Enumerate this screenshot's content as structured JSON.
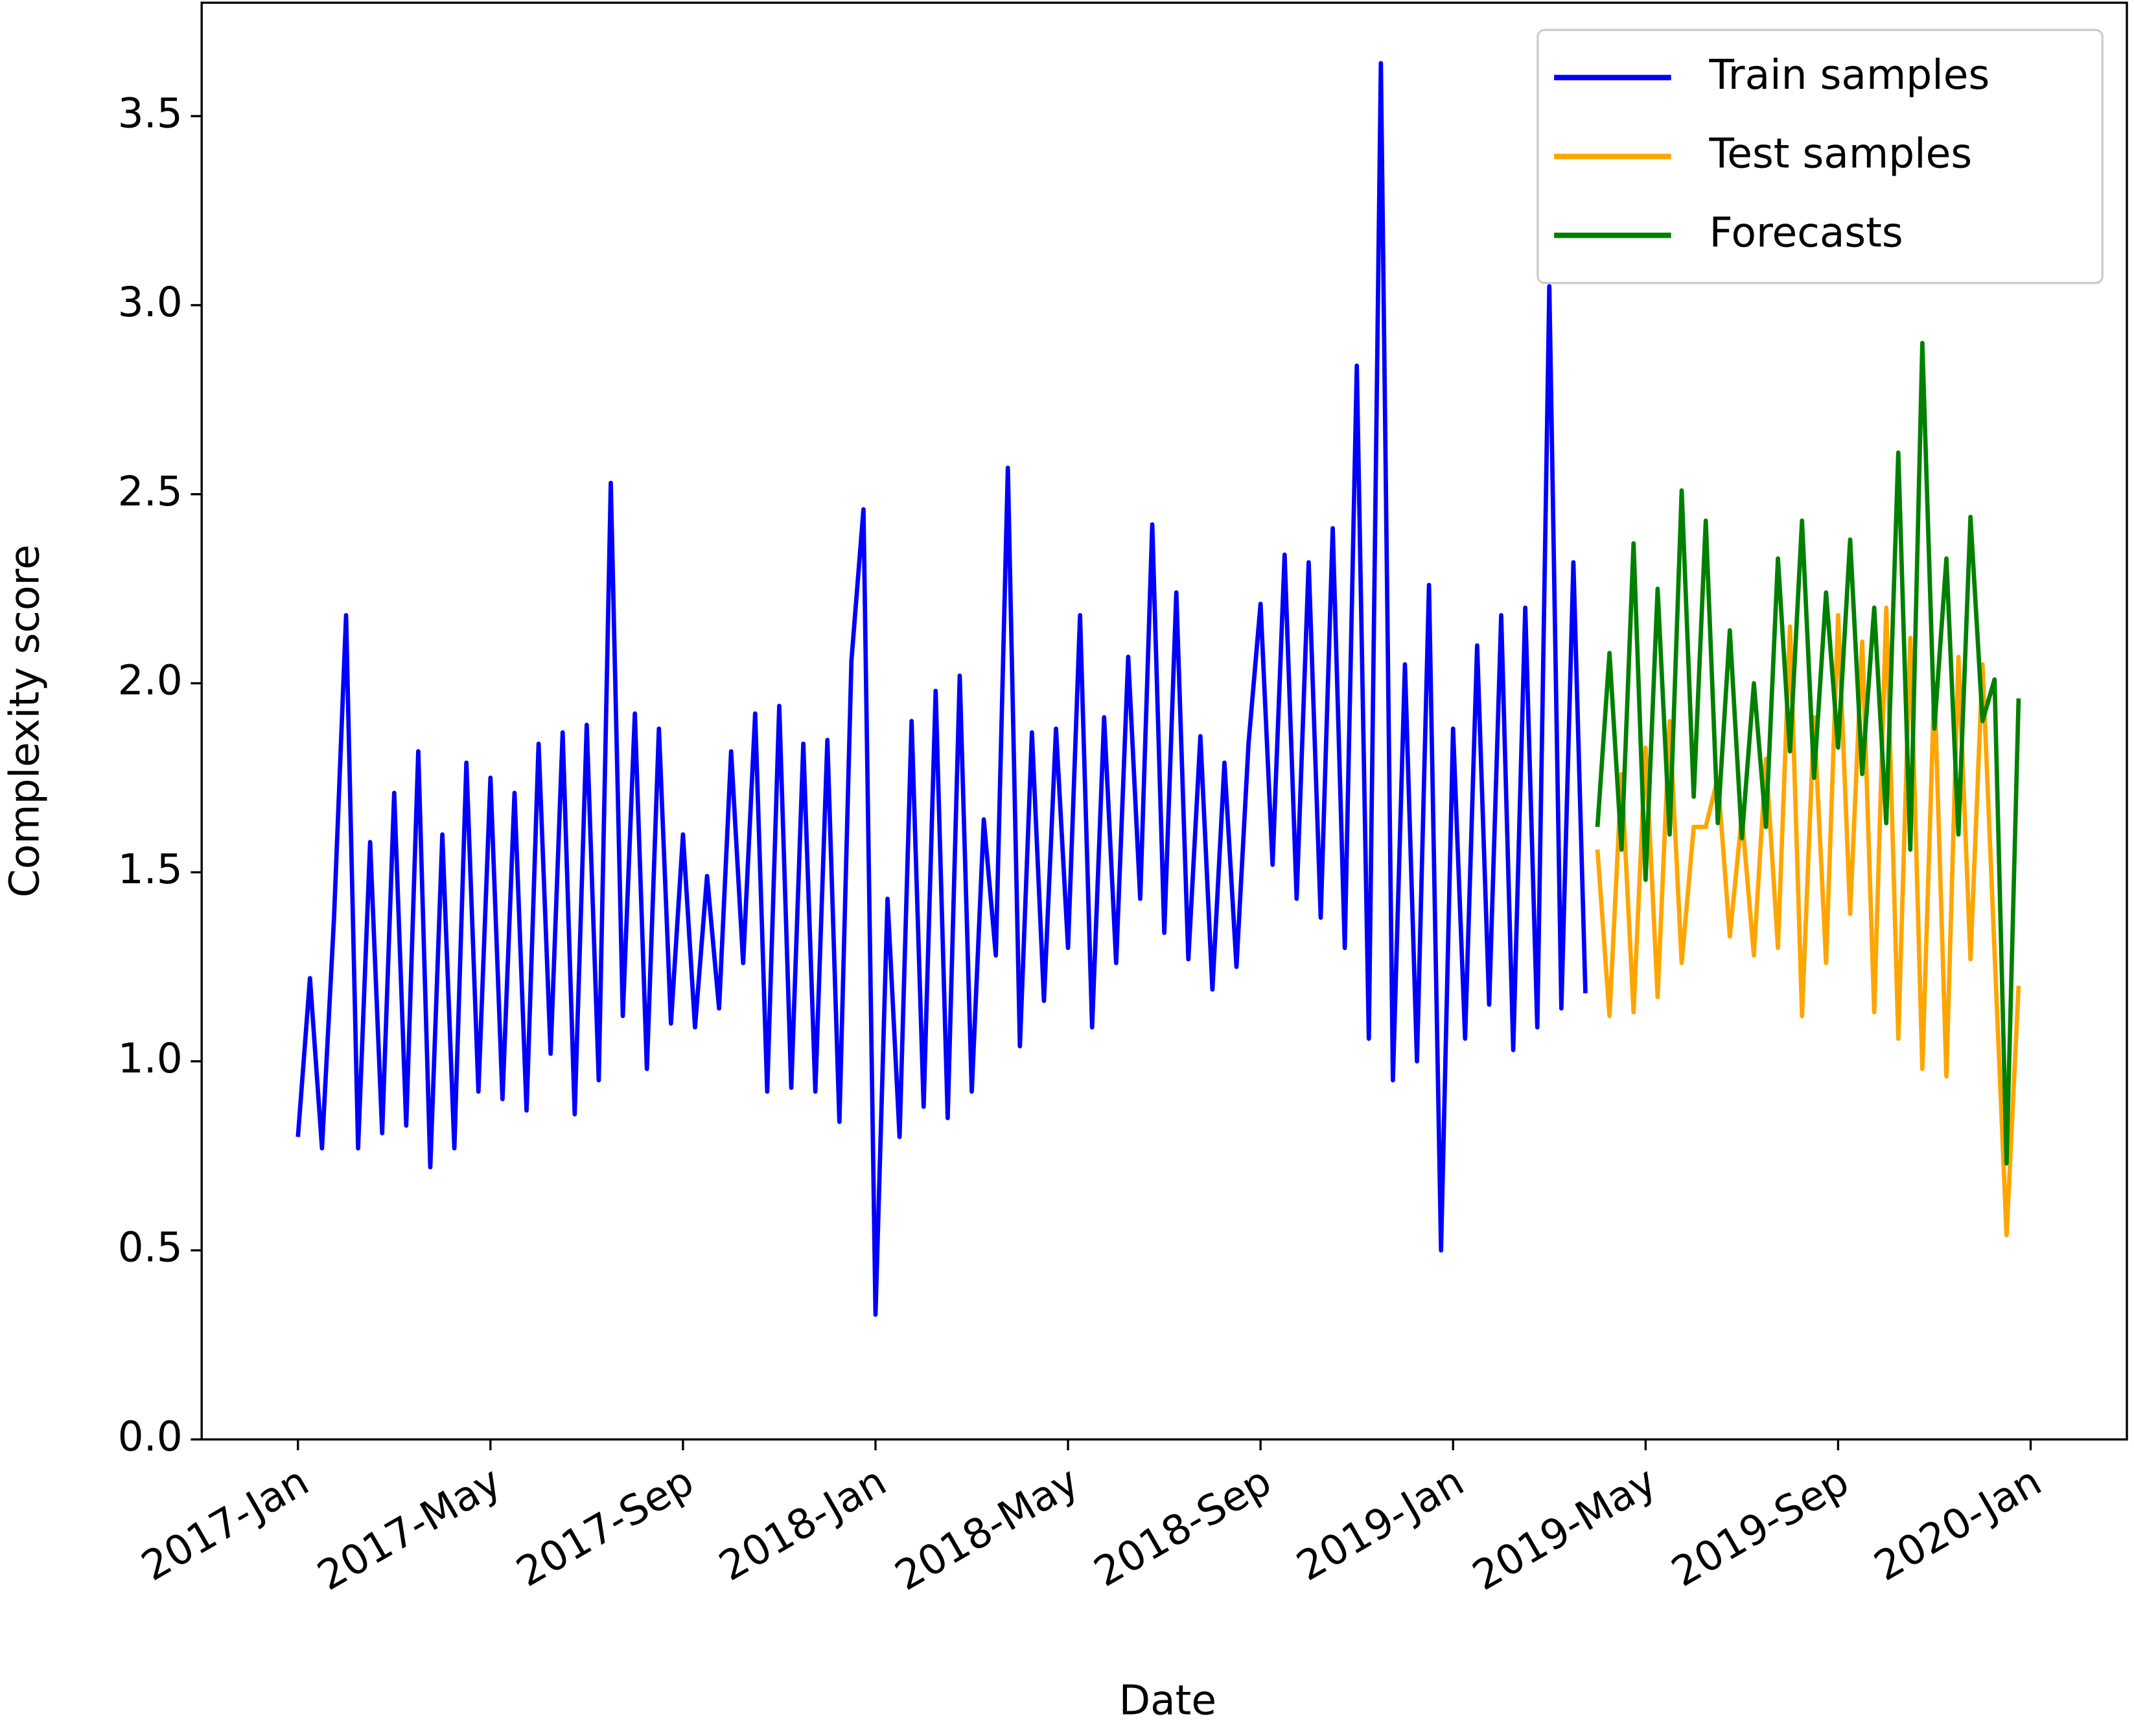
{
  "chart_data": {
    "type": "line",
    "xlabel": "Date",
    "ylabel": "Complexity score",
    "xlim": [
      "2016-11",
      "2020-03"
    ],
    "xticks": [
      {
        "value": "2017-01",
        "label": "2017-Jan"
      },
      {
        "value": "2017-05",
        "label": "2017-May"
      },
      {
        "value": "2017-09",
        "label": "2017-Sep"
      },
      {
        "value": "2018-01",
        "label": "2018-Jan"
      },
      {
        "value": "2018-05",
        "label": "2018-May"
      },
      {
        "value": "2018-09",
        "label": "2018-Sep"
      },
      {
        "value": "2019-01",
        "label": "2019-Jan"
      },
      {
        "value": "2019-05",
        "label": "2019-May"
      },
      {
        "value": "2019-09",
        "label": "2019-Sep"
      },
      {
        "value": "2020-01",
        "label": "2020-Jan"
      }
    ],
    "ylim": [
      0,
      3.8
    ],
    "yticks": [
      {
        "value": 0,
        "label": "0.0"
      },
      0.5,
      {
        "value": 1,
        "label": "1.0"
      },
      1.5,
      {
        "value": 2,
        "label": "2.0"
      },
      2.5,
      {
        "value": 3,
        "label": "3.0"
      },
      3.5
    ],
    "legend": "upper right",
    "series": [
      {
        "name": "Train samples",
        "color": "#0000ff",
        "x": [
          "2017-01",
          "2017-01",
          "2017-01",
          "2017-01",
          "2017-02",
          "2017-02",
          "2017-02",
          "2017-02",
          "2017-03",
          "2017-03",
          "2017-03",
          "2017-03",
          "2017-04",
          "2017-04",
          "2017-04",
          "2017-04",
          "2017-05",
          "2017-05",
          "2017-05",
          "2017-05",
          "2017-06",
          "2017-06",
          "2017-06",
          "2017-06",
          "2017-07",
          "2017-07",
          "2017-07",
          "2017-07",
          "2017-08",
          "2017-08",
          "2017-08",
          "2017-08",
          "2017-09",
          "2017-09",
          "2017-09",
          "2017-09",
          "2017-10",
          "2017-10",
          "2017-10",
          "2017-10",
          "2017-11",
          "2017-11",
          "2017-11",
          "2017-11",
          "2017-12",
          "2017-12",
          "2017-12",
          "2017-12",
          "2018-01",
          "2018-01",
          "2018-01",
          "2018-01",
          "2018-02",
          "2018-02",
          "2018-02",
          "2018-02",
          "2018-03",
          "2018-03",
          "2018-03",
          "2018-03",
          "2018-04",
          "2018-04",
          "2018-04",
          "2018-04",
          "2018-05",
          "2018-05",
          "2018-05",
          "2018-05",
          "2018-06",
          "2018-06",
          "2018-06",
          "2018-06",
          "2018-07",
          "2018-07",
          "2018-07",
          "2018-07",
          "2018-08",
          "2018-08",
          "2018-08",
          "2018-08",
          "2018-09",
          "2018-09",
          "2018-09",
          "2018-09",
          "2018-10",
          "2018-10",
          "2018-10",
          "2018-10",
          "2018-11",
          "2018-11",
          "2018-11",
          "2018-11",
          "2018-12",
          "2018-12",
          "2018-12",
          "2018-12",
          "2019-01",
          "2019-01",
          "2019-01",
          "2019-01",
          "2019-02",
          "2019-02",
          "2019-02",
          "2019-02",
          "2019-03",
          "2019-03",
          "2019-03",
          "2019-03"
        ],
        "values": [
          0.8,
          1.22,
          0.77,
          1.38,
          2.18,
          0.77,
          1.58,
          0.81,
          1.71,
          0.83,
          1.82,
          0.72,
          1.6,
          0.77,
          1.79,
          0.92,
          1.75,
          0.9,
          1.71,
          0.87,
          1.84,
          1.02,
          1.87,
          0.86,
          1.89,
          0.95,
          2.53,
          1.12,
          1.92,
          0.98,
          1.88,
          1.1,
          1.6,
          1.09,
          1.49,
          1.14,
          1.82,
          1.26,
          1.92,
          0.92,
          1.94,
          0.93,
          1.84,
          0.92,
          1.85,
          0.84,
          2.06,
          2.46,
          0.33,
          1.43,
          0.8,
          1.9,
          0.88,
          1.98,
          0.85,
          2.02,
          0.92,
          1.64,
          1.28,
          2.57,
          1.04,
          1.87,
          1.16,
          1.88,
          1.3,
          2.18,
          1.09,
          1.91,
          1.26,
          2.07,
          1.43,
          2.42,
          1.34,
          2.24,
          1.27,
          1.86,
          1.19,
          1.79,
          1.25,
          1.84,
          2.21,
          1.52,
          2.34,
          1.43,
          2.32,
          1.38,
          2.41,
          1.3,
          2.84,
          1.06,
          3.64,
          0.95,
          2.05,
          1.0,
          2.26,
          0.5,
          1.88,
          1.06,
          2.1,
          1.15,
          2.18,
          1.03,
          2.2,
          1.09,
          3.05,
          1.14,
          2.32,
          1.18
        ]
      },
      {
        "name": "Test samples",
        "color": "#ffa500",
        "x": [
          "2019-04",
          "2019-04",
          "2019-04",
          "2019-04",
          "2019-05",
          "2019-05",
          "2019-05",
          "2019-05",
          "2019-06",
          "2019-06",
          "2019-06",
          "2019-06",
          "2019-07",
          "2019-07",
          "2019-07",
          "2019-07",
          "2019-08",
          "2019-08",
          "2019-08",
          "2019-08",
          "2019-09",
          "2019-09",
          "2019-09",
          "2019-09",
          "2019-10",
          "2019-10",
          "2019-10",
          "2019-10",
          "2019-11",
          "2019-11",
          "2019-11",
          "2019-11",
          "2019-12",
          "2019-12",
          "2019-12",
          "2019-12"
        ],
        "values": [
          1.56,
          1.12,
          1.76,
          1.13,
          1.83,
          1.17,
          1.9,
          1.26,
          1.62,
          1.62,
          1.75,
          1.33,
          1.65,
          1.28,
          1.8,
          1.3,
          2.15,
          1.12,
          1.91,
          1.26,
          2.18,
          1.39,
          2.11,
          1.13,
          2.2,
          1.06,
          2.12,
          0.98,
          2.0,
          0.96,
          2.07,
          1.27,
          2.05,
          1.29,
          0.54,
          1.2
        ]
      },
      {
        "name": "Forecasts",
        "color": "#008000",
        "x": [
          "2019-04",
          "2019-04",
          "2019-04",
          "2019-04",
          "2019-05",
          "2019-05",
          "2019-05",
          "2019-05",
          "2019-06",
          "2019-06",
          "2019-06",
          "2019-06",
          "2019-07",
          "2019-07",
          "2019-07",
          "2019-07",
          "2019-08",
          "2019-08",
          "2019-08",
          "2019-08",
          "2019-09",
          "2019-09",
          "2019-09",
          "2019-09",
          "2019-10",
          "2019-10",
          "2019-10",
          "2019-10",
          "2019-11",
          "2019-11",
          "2019-11",
          "2019-11",
          "2019-12",
          "2019-12",
          "2019-12",
          "2019-12"
        ],
        "values": [
          1.62,
          2.08,
          1.56,
          2.37,
          1.48,
          2.25,
          1.6,
          2.51,
          1.7,
          2.43,
          1.63,
          2.14,
          1.59,
          2.0,
          1.62,
          2.33,
          1.82,
          2.43,
          1.75,
          2.24,
          1.83,
          2.38,
          1.76,
          2.2,
          1.63,
          2.61,
          1.56,
          2.9,
          1.88,
          2.33,
          1.6,
          2.44,
          1.9,
          2.01,
          0.73,
          1.96
        ]
      }
    ]
  }
}
